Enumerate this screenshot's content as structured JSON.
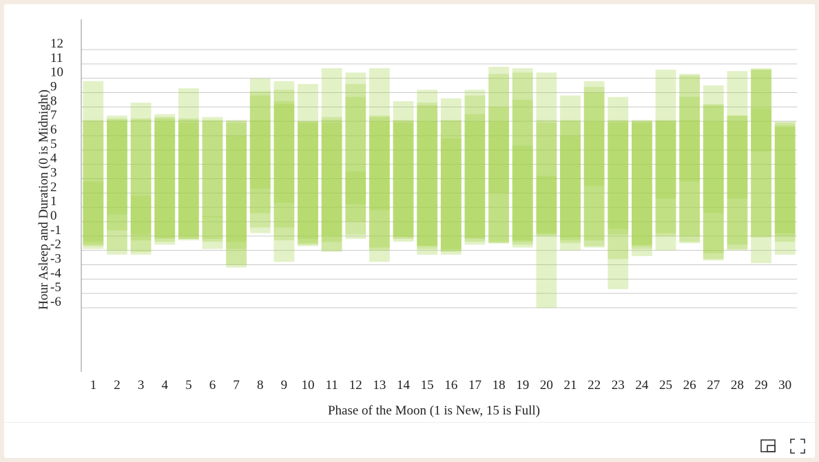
{
  "chart_data": {
    "type": "bar",
    "title": "",
    "xlabel": "Phase of the Moon (1 is New, 15 is Full)",
    "ylabel": "Hour Asleep and Duration (0 is Midnight)",
    "ylim": [
      -6,
      12
    ],
    "y_ticks": [
      "12",
      "11",
      "10",
      "9",
      "8",
      "7",
      "6",
      "5",
      "4",
      "3",
      "2",
      "1",
      "0",
      "-1",
      "-2",
      "-3",
      "-4",
      "-5",
      "-6"
    ],
    "categories": [
      "1",
      "2",
      "3",
      "4",
      "5",
      "6",
      "7",
      "8",
      "9",
      "10",
      "11",
      "12",
      "13",
      "14",
      "15",
      "16",
      "17",
      "18",
      "19",
      "20",
      "21",
      "22",
      "23",
      "24",
      "25",
      "26",
      "27",
      "28",
      "29",
      "30"
    ],
    "grid": true,
    "bar_color": "#a3d147",
    "series": [
      {
        "values": [
          [
            -1.7,
            7.1
          ],
          [
            -2.0,
            7.2
          ],
          [
            -2.1,
            7.1
          ],
          [
            -1.4,
            7.3
          ],
          [
            -1.2,
            7.1
          ],
          [
            -1.4,
            7.1
          ],
          [
            -3.2,
            7.0
          ],
          [
            -0.8,
            9.1
          ],
          [
            -2.8,
            8.4
          ],
          [
            -1.6,
            7.0
          ],
          [
            -2.1,
            7.3
          ],
          [
            -0.9,
            8.7
          ],
          [
            -2.0,
            7.4
          ],
          [
            -1.0,
            7.1
          ],
          [
            -1.9,
            8.3
          ],
          [
            -2.1,
            7.1
          ],
          [
            -1.4,
            8.8
          ],
          [
            -1.5,
            10.3
          ],
          [
            -1.6,
            10.4
          ],
          [
            -0.9,
            7.1
          ],
          [
            -1.5,
            7.1
          ],
          [
            -1.3,
            9.4
          ],
          [
            -0.9,
            7.1
          ],
          [
            -1.9,
            7.0
          ],
          [
            -0.8,
            7.1
          ],
          [
            -1.4,
            10.2
          ],
          [
            -2.6,
            8.2
          ],
          [
            -1.9,
            7.4
          ],
          [
            -2.9,
            10.6
          ],
          [
            -1.4,
            7.0
          ]
        ]
      },
      {
        "values": [
          [
            -1.9,
            9.8
          ],
          [
            -2.3,
            7.4
          ],
          [
            -2.3,
            8.3
          ],
          [
            -1.6,
            7.5
          ],
          [
            -1.2,
            9.3
          ],
          [
            -1.9,
            7.3
          ],
          [
            -3.0,
            7.1
          ],
          [
            -0.4,
            10.0
          ],
          [
            -1.3,
            9.8
          ],
          [
            -1.7,
            9.6
          ],
          [
            -1.4,
            10.7
          ],
          [
            -1.2,
            10.4
          ],
          [
            -2.8,
            10.7
          ],
          [
            -1.4,
            8.4
          ],
          [
            -2.3,
            9.2
          ],
          [
            -2.0,
            8.6
          ],
          [
            -1.6,
            9.2
          ],
          [
            -1.5,
            10.8
          ],
          [
            -1.4,
            10.7
          ],
          [
            -6.0,
            10.4
          ],
          [
            -1.1,
            8.8
          ],
          [
            -1.8,
            9.8
          ],
          [
            -4.7,
            8.7
          ],
          [
            -2.4,
            7.1
          ],
          [
            -1.0,
            10.6
          ],
          [
            -1.5,
            10.3
          ],
          [
            -2.7,
            9.5
          ],
          [
            -1.6,
            10.5
          ],
          [
            -1.1,
            10.7
          ],
          [
            -2.3,
            6.7
          ]
        ]
      },
      {
        "values": [
          [
            -1.6,
            7.0
          ],
          [
            -0.6,
            7.0
          ],
          [
            -0.9,
            7.2
          ],
          [
            -1.2,
            7.0
          ],
          [
            -1.0,
            7.2
          ],
          [
            0.3,
            7.0
          ],
          [
            -1.4,
            6.0
          ],
          [
            0.6,
            8.8
          ],
          [
            -0.4,
            9.2
          ],
          [
            -1.2,
            7.0
          ],
          [
            -2.0,
            7.1
          ],
          [
            1.2,
            9.6
          ],
          [
            -1.8,
            7.0
          ],
          [
            -1.2,
            7.0
          ],
          [
            -1.7,
            8.1
          ],
          [
            -2.3,
            7.0
          ],
          [
            -1.2,
            7.0
          ],
          [
            -1.4,
            8.0
          ],
          [
            -1.8,
            8.5
          ],
          [
            -0.8,
            6.9
          ],
          [
            -2.0,
            7.0
          ],
          [
            -1.7,
            9.0
          ],
          [
            -2.6,
            7.0
          ],
          [
            -1.6,
            6.9
          ],
          [
            -2.0,
            7.0
          ],
          [
            -1.0,
            8.7
          ],
          [
            -2.2,
            8.1
          ],
          [
            -2.0,
            7.4
          ],
          [
            -1.0,
            7.9
          ],
          [
            -1.0,
            6.9
          ]
        ]
      },
      {
        "values": [
          [
            -1.4,
            2.8
          ],
          [
            0.5,
            7.1
          ],
          [
            -1.3,
            1.8
          ],
          [
            -1.1,
            7.2
          ],
          [
            -1.3,
            6.9
          ],
          [
            -1.2,
            0.4
          ],
          [
            -1.9,
            6.9
          ],
          [
            2.3,
            7.1
          ],
          [
            1.3,
            8.2
          ],
          [
            -1.5,
            6.9
          ],
          [
            -1.0,
            6.9
          ],
          [
            0.0,
            3.5
          ],
          [
            0.8,
            7.3
          ],
          [
            -1.1,
            6.9
          ],
          [
            -1.7,
            7.0
          ],
          [
            -1.9,
            5.8
          ],
          [
            -1.1,
            7.5
          ],
          [
            2.0,
            7.0
          ],
          [
            -1.3,
            5.3
          ],
          [
            -1.0,
            3.2
          ],
          [
            -1.3,
            6.0
          ],
          [
            2.5,
            7.0
          ],
          [
            -0.5,
            6.9
          ],
          [
            -1.7,
            7.0
          ],
          [
            1.6,
            7.0
          ],
          [
            2.8,
            7.1
          ],
          [
            0.6,
            7.0
          ],
          [
            1.6,
            7.0
          ],
          [
            4.9,
            10.6
          ],
          [
            -0.8,
            6.6
          ]
        ]
      }
    ],
    "toolbar_icons": [
      "minimize-icon",
      "fullscreen-icon"
    ]
  }
}
